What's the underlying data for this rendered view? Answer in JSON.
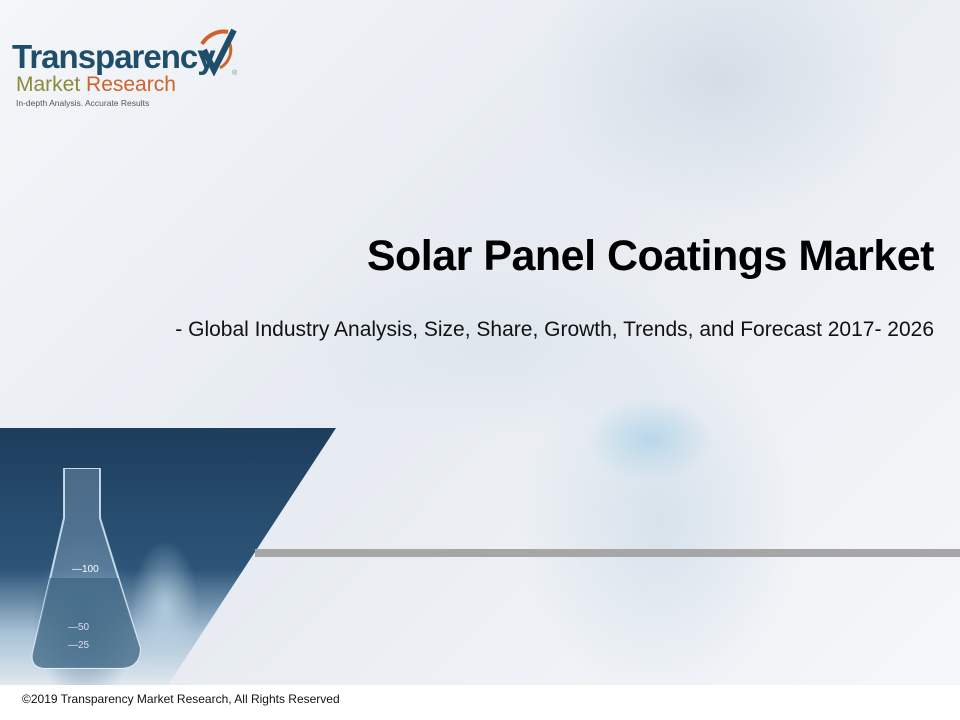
{
  "logo": {
    "line1": "Transparency",
    "line2_a": "Market",
    "line2_b": "Research",
    "tagline": "In-depth Analysis. Accurate Results",
    "registered": "®",
    "colors": {
      "primary": "#1f4e6b",
      "olive": "#8c8a3c",
      "orange": "#d0622c"
    }
  },
  "title": "Solar Panel Coatings Market",
  "subtitle": "- Global Industry Analysis, Size, Share, Growth, Trends, and Forecast 2017- 2026",
  "footer": "©2019 Transparency Market Research, All Rights Reserved"
}
